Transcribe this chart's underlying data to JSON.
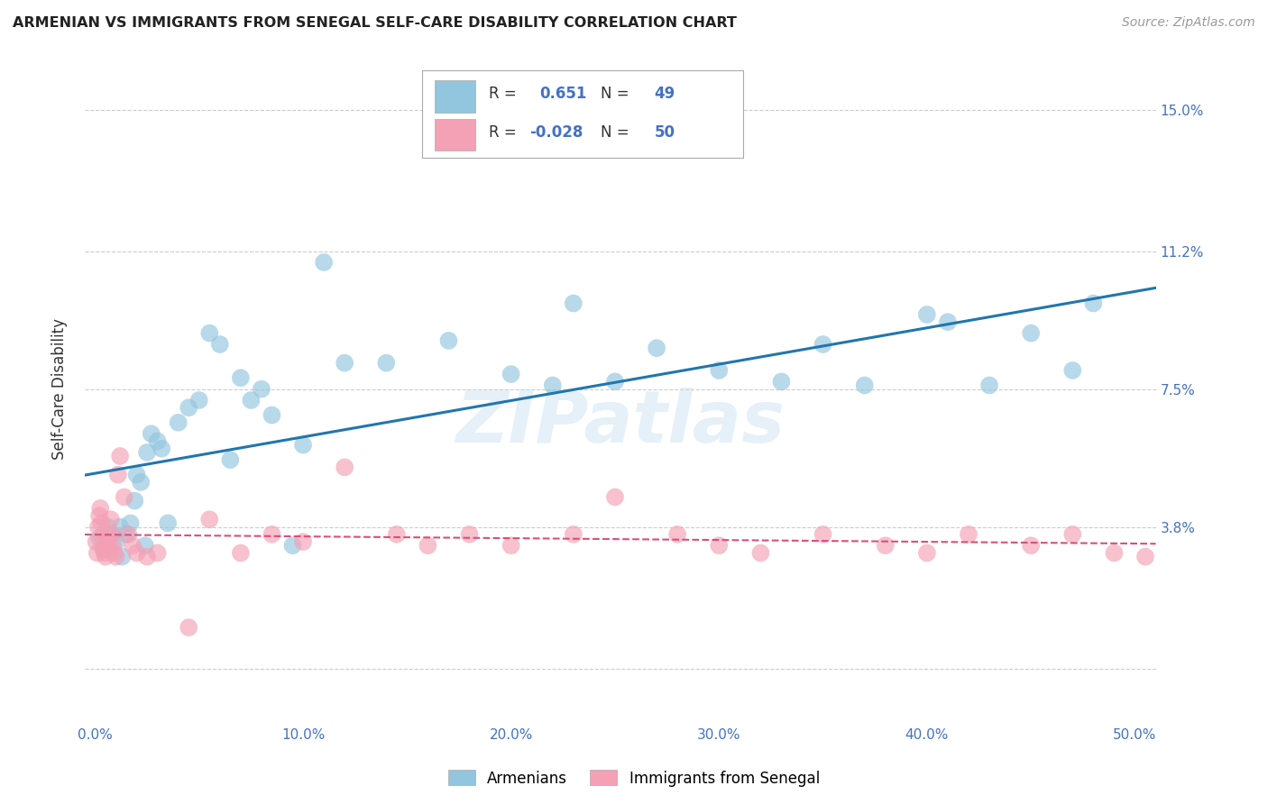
{
  "title": "ARMENIAN VS IMMIGRANTS FROM SENEGAL SELF-CARE DISABILITY CORRELATION CHART",
  "source": "Source: ZipAtlas.com",
  "ylabel": "Self-Care Disability",
  "xlim": [
    -0.5,
    51.0
  ],
  "ylim": [
    -1.5,
    16.5
  ],
  "yticks": [
    0.0,
    3.8,
    7.5,
    11.2,
    15.0
  ],
  "xticks": [
    0.0,
    10.0,
    20.0,
    30.0,
    40.0,
    50.0
  ],
  "xtick_labels": [
    "0.0%",
    "10.0%",
    "20.0%",
    "30.0%",
    "40.0%",
    "50.0%"
  ],
  "ytick_labels": [
    "",
    "3.8%",
    "7.5%",
    "11.2%",
    "15.0%"
  ],
  "blue_label": "Armenians",
  "pink_label": "Immigrants from Senegal",
  "blue_R": "0.651",
  "blue_N": "49",
  "pink_R": "-0.028",
  "pink_N": "50",
  "blue_color": "#92c5de",
  "pink_color": "#f4a0b5",
  "trend_blue": "#2176ae",
  "trend_pink": "#d94f7a",
  "label_color": "#4472c4",
  "watermark": "ZIPatlas",
  "blue_x": [
    0.2,
    0.4,
    0.6,
    0.8,
    1.0,
    1.2,
    1.3,
    1.5,
    1.7,
    1.9,
    2.0,
    2.2,
    2.4,
    2.5,
    2.7,
    3.0,
    3.2,
    3.5,
    4.0,
    4.5,
    5.0,
    5.5,
    6.0,
    6.5,
    7.0,
    7.5,
    8.0,
    8.5,
    9.5,
    10.0,
    11.0,
    12.0,
    14.0,
    17.0,
    20.0,
    22.0,
    23.0,
    25.0,
    27.0,
    30.0,
    33.0,
    35.0,
    37.0,
    40.0,
    41.0,
    43.0,
    45.0,
    47.0,
    48.0
  ],
  "blue_y": [
    3.5,
    3.2,
    3.8,
    3.6,
    3.4,
    3.8,
    3.0,
    3.6,
    3.9,
    4.5,
    5.2,
    5.0,
    3.3,
    5.8,
    6.3,
    6.1,
    5.9,
    3.9,
    6.6,
    7.0,
    7.2,
    9.0,
    8.7,
    5.6,
    7.8,
    7.2,
    7.5,
    6.8,
    3.3,
    6.0,
    10.9,
    8.2,
    8.2,
    8.8,
    7.9,
    7.6,
    9.8,
    7.7,
    8.6,
    8.0,
    7.7,
    8.7,
    7.6,
    9.5,
    9.3,
    7.6,
    9.0,
    8.0,
    9.8
  ],
  "pink_x": [
    0.05,
    0.1,
    0.15,
    0.2,
    0.25,
    0.3,
    0.35,
    0.4,
    0.45,
    0.5,
    0.55,
    0.6,
    0.65,
    0.7,
    0.75,
    0.8,
    0.85,
    0.9,
    1.0,
    1.1,
    1.2,
    1.4,
    1.6,
    1.8,
    2.0,
    2.5,
    3.0,
    4.5,
    5.5,
    7.0,
    8.5,
    10.0,
    12.0,
    14.5,
    16.0,
    18.0,
    20.0,
    23.0,
    25.0,
    28.0,
    30.0,
    32.0,
    35.0,
    38.0,
    40.0,
    42.0,
    45.0,
    47.0,
    49.0,
    50.5
  ],
  "pink_y": [
    3.4,
    3.1,
    3.8,
    4.1,
    4.3,
    3.9,
    3.5,
    3.2,
    3.1,
    3.0,
    3.2,
    3.4,
    3.6,
    3.2,
    4.0,
    3.6,
    3.3,
    3.1,
    3.0,
    5.2,
    5.7,
    4.6,
    3.6,
    3.3,
    3.1,
    3.0,
    3.1,
    1.1,
    4.0,
    3.1,
    3.6,
    3.4,
    5.4,
    3.6,
    3.3,
    3.6,
    3.3,
    3.6,
    4.6,
    3.6,
    3.3,
    3.1,
    3.6,
    3.3,
    3.1,
    3.6,
    3.3,
    3.6,
    3.1,
    3.0
  ]
}
